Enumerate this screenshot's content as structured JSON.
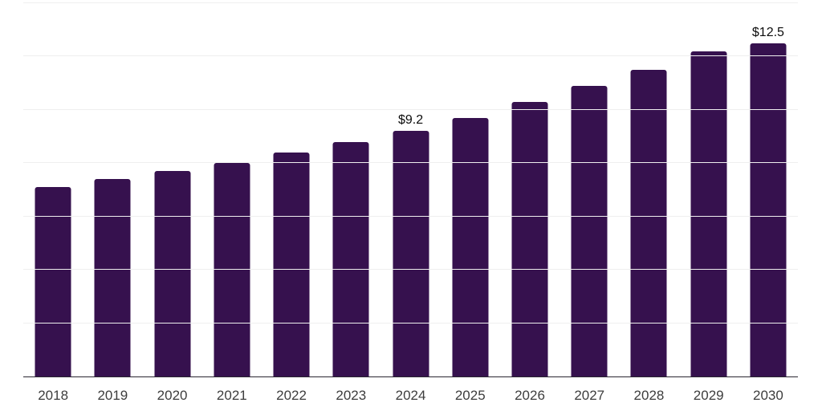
{
  "chart_data": {
    "type": "bar",
    "title": "",
    "xlabel": "",
    "ylabel": "",
    "categories": [
      "2018",
      "2019",
      "2020",
      "2021",
      "2022",
      "2023",
      "2024",
      "2025",
      "2026",
      "2027",
      "2028",
      "2029",
      "2030"
    ],
    "values": [
      7.1,
      7.4,
      7.7,
      8.0,
      8.4,
      8.8,
      9.2,
      9.7,
      10.3,
      10.9,
      11.5,
      12.2,
      12.5
    ],
    "value_prefix": "$",
    "data_labels": [
      {
        "category": "2024",
        "text": "$9.2"
      },
      {
        "category": "2030",
        "text": "$12.5"
      }
    ],
    "ylim": [
      0,
      14
    ],
    "gridline_step": 2,
    "grid": true,
    "legend": false,
    "y_tick_labels_visible": false,
    "colors": {
      "bar": "#36114E",
      "grid": "#EFEFEF",
      "axis_line": "#2A2731",
      "x_tick_text": "#3D3D3D",
      "data_label_text": "#0C0C0C",
      "background": "#FFFFFF"
    }
  }
}
